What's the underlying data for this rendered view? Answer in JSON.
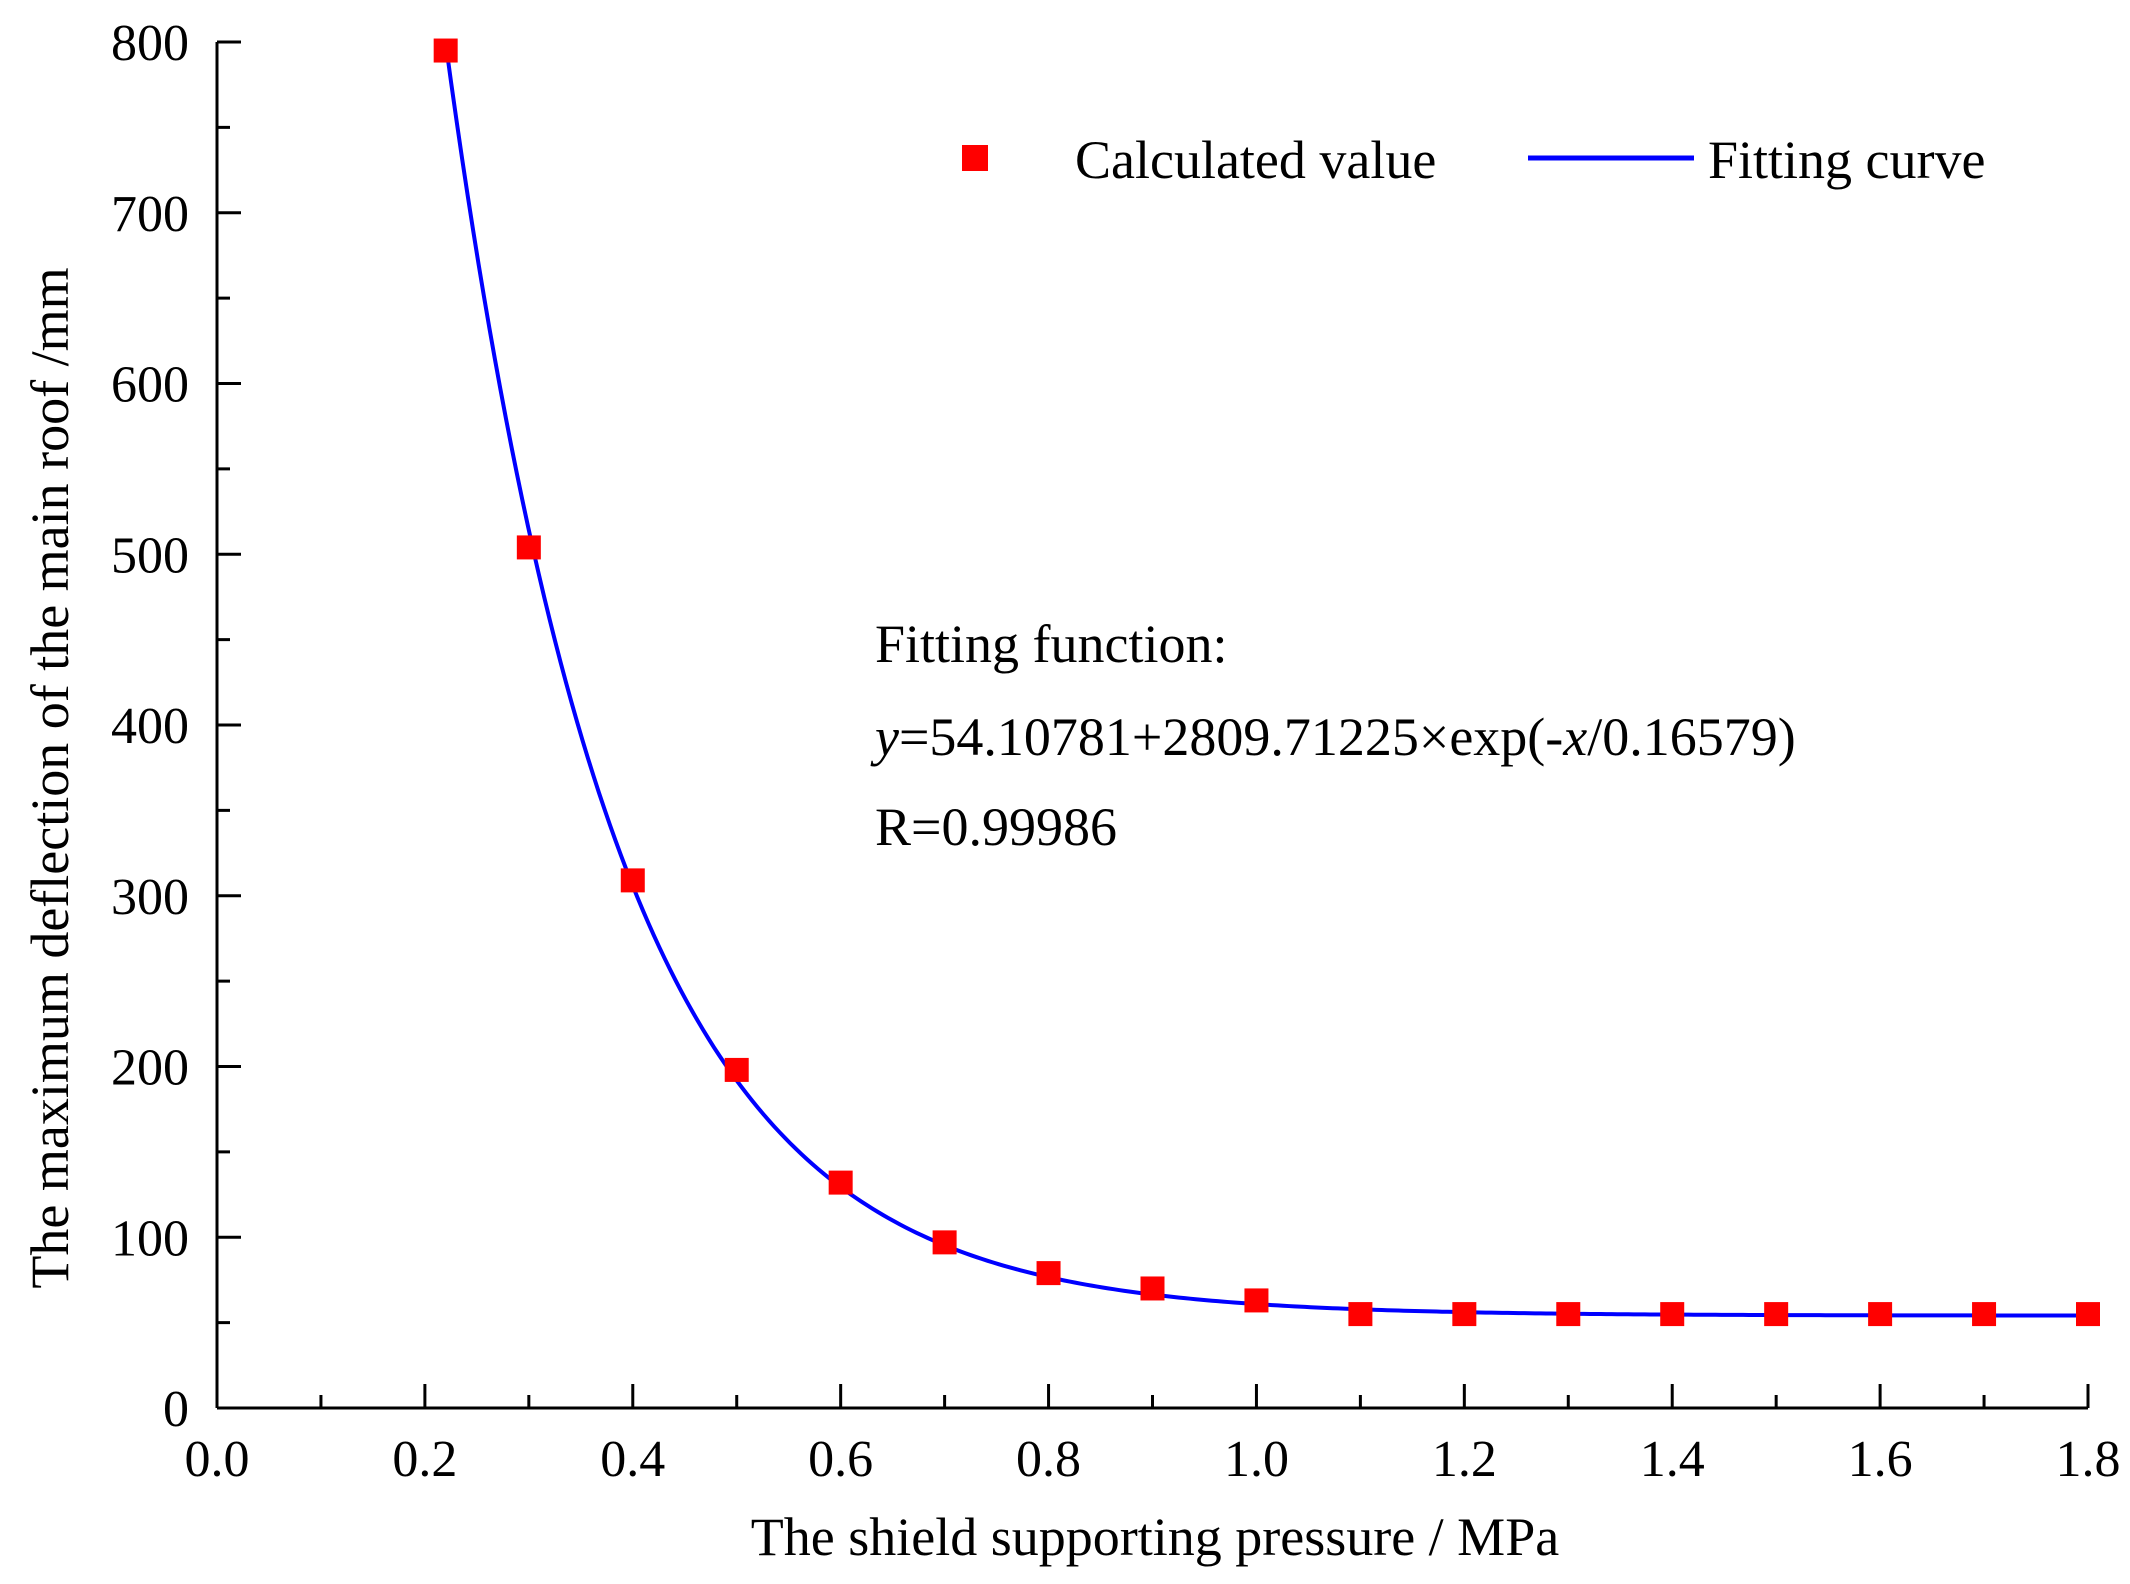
{
  "chart_data": {
    "type": "scatter",
    "title": "",
    "xlabel": "The shield supporting pressure / MPa",
    "ylabel": "The maximum deflection of the main roof /mm",
    "xlim": [
      0.0,
      1.8
    ],
    "ylim": [
      0,
      800
    ],
    "x_major_ticks": [
      0.0,
      0.2,
      0.4,
      0.6,
      0.8,
      1.0,
      1.2,
      1.4,
      1.6,
      1.8
    ],
    "x_tick_labels": [
      "0.0",
      "0.2",
      "0.4",
      "0.6",
      "0.8",
      "1.0",
      "1.2",
      "1.4",
      "1.6",
      "1.8"
    ],
    "x_minor_step": 0.1,
    "y_major_ticks": [
      0,
      100,
      200,
      300,
      400,
      500,
      600,
      700,
      800
    ],
    "y_tick_labels": [
      "0",
      "100",
      "200",
      "300",
      "400",
      "500",
      "600",
      "700",
      "800"
    ],
    "y_minor_step": 50,
    "grid": false,
    "series": [
      {
        "name": "Calculated value",
        "kind": "scatter",
        "marker": "square",
        "color": "#ff0000",
        "x": [
          0.22,
          0.3,
          0.4,
          0.5,
          0.6,
          0.7,
          0.8,
          0.9,
          1.0,
          1.1,
          1.2,
          1.3,
          1.4,
          1.5,
          1.6,
          1.7,
          1.8
        ],
        "values": [
          795,
          504,
          309,
          198,
          132,
          97,
          79,
          70,
          63,
          55,
          55,
          55,
          55,
          55,
          55,
          55,
          55
        ]
      },
      {
        "name": "Fitting curve",
        "kind": "line",
        "color": "#0000ff",
        "function": {
          "form": "y = y0 + A*exp(-x/t)",
          "y0": 54.10781,
          "A": 2809.71225,
          "t": 0.16579,
          "x_from": 0.22,
          "x_to": 1.8
        }
      }
    ],
    "legend": {
      "position": "top-right",
      "items": [
        "Calculated value",
        "Fitting curve"
      ]
    },
    "annotations": {
      "fit_heading": "Fitting function:",
      "fit_y": "y",
      "fit_part1": "=54.10781+2809.71225×exp(-",
      "fit_x": "x",
      "fit_part2": "/0.16579)",
      "r_value": "R=0.99986"
    },
    "colors": {
      "axis": "#000000",
      "scatter": "#ff0000",
      "curve": "#0000ff"
    }
  }
}
